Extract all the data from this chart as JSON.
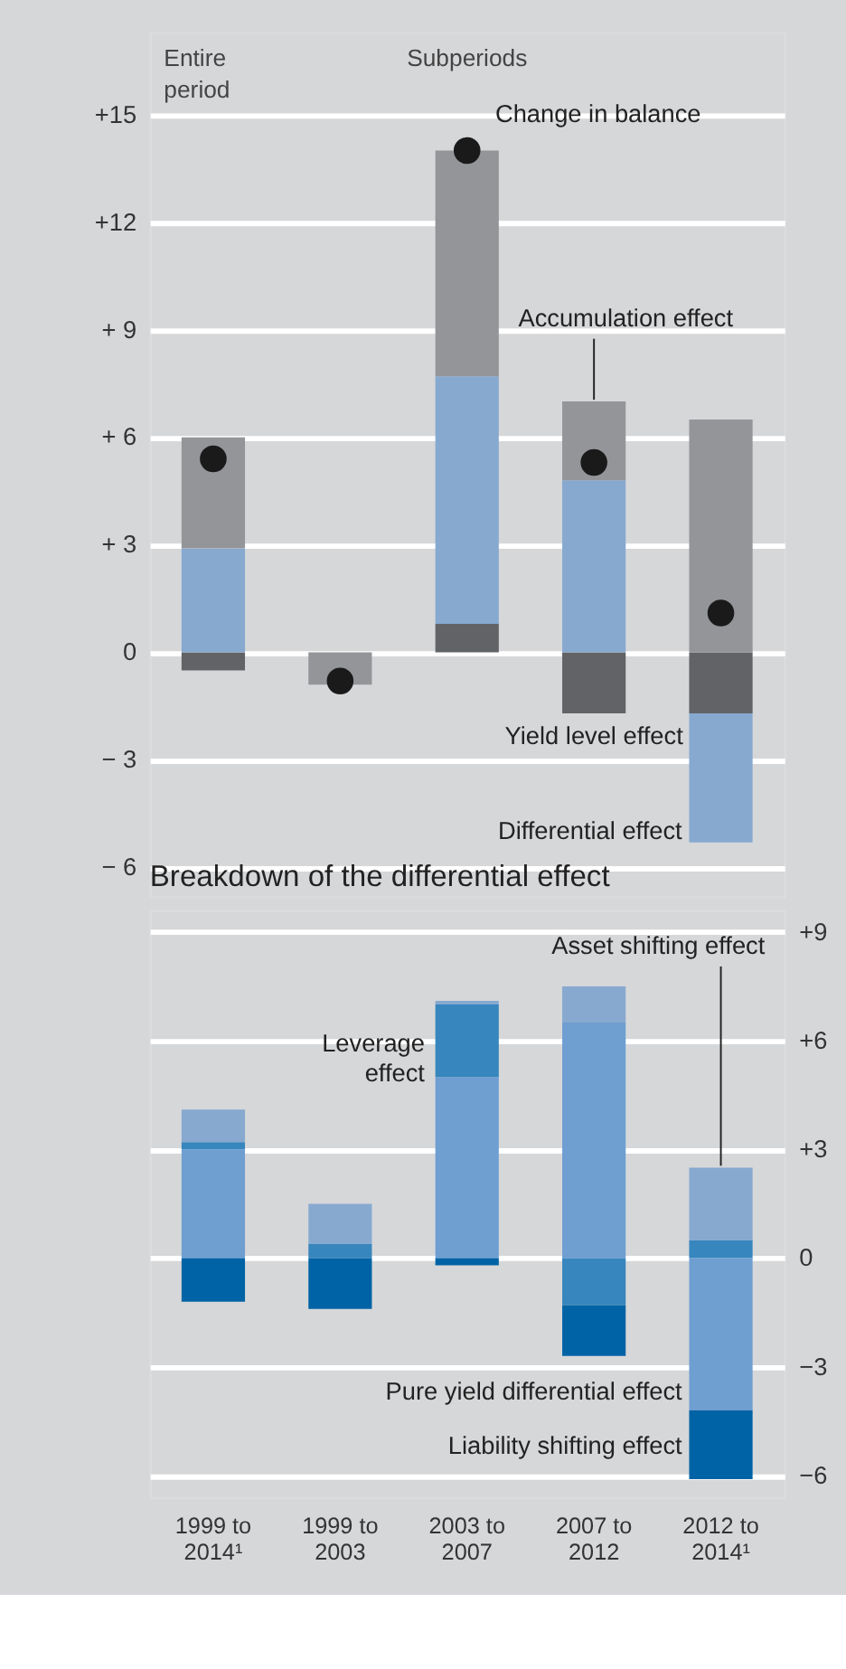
{
  "chart_data": [
    {
      "type": "bar",
      "stacked": true,
      "categories": [
        "1999 to 2014¹",
        "1999 to 2003",
        "2003 to 2007",
        "2007 to 2012",
        "2012 to 2014¹"
      ],
      "series": [
        {
          "name": "Yield level effect",
          "color": "#626366",
          "values": [
            -0.5,
            0,
            0.8,
            -1.7,
            -1.7
          ]
        },
        {
          "name": "Differential effect",
          "color": "#87a9d0",
          "values": [
            2.9,
            0,
            6.9,
            4.8,
            -3.6
          ]
        },
        {
          "name": "Accumulation effect",
          "color": "#939598",
          "values": [
            3.1,
            -0.9,
            6.3,
            2.2,
            6.5
          ]
        },
        {
          "name": "Change in balance",
          "type": "scatter",
          "color": "#1a1a1a",
          "x": [
            "1999 to 2014¹",
            "1999 to 2003",
            "2003 to 2007",
            "2007 to 2012",
            "2012 to 2014¹"
          ],
          "values": [
            5.4,
            -0.8,
            14.0,
            5.3,
            1.1
          ]
        }
      ],
      "annotations": [
        "Entire period",
        "Subperiods"
      ],
      "ylim": [
        -6.8,
        17.3
      ],
      "yticks": [
        {
          "value": 15,
          "label": "+15"
        },
        {
          "value": 12,
          "label": "+12"
        },
        {
          "value": 9,
          "label": "+ 9"
        },
        {
          "value": 6,
          "label": "+ 6"
        },
        {
          "value": 3,
          "label": "+ 3"
        },
        0,
        {
          "value": -3,
          "label": "− 3"
        },
        {
          "value": -6,
          "label": "− 6"
        }
      ],
      "grid": "y",
      "legend": false,
      "tick_labels": "y"
    },
    {
      "type": "bar",
      "stacked": true,
      "title": "Breakdown of the differential effect",
      "categories": [
        "1999 to 2014¹",
        "1999 to 2003",
        "2003 to 2007",
        "2007 to 2012",
        "2012 to 2014¹"
      ],
      "series": [
        {
          "name": "Pure yield differential effect",
          "color": "#6f9ed1",
          "values": [
            3.0,
            0,
            5.0,
            6.5,
            -4.2
          ]
        },
        {
          "name": "Leverage effect",
          "color": "#3786bd",
          "values": [
            0.2,
            0.4,
            2.0,
            -1.3,
            0.5
          ]
        },
        {
          "name": "Asset shifting effect",
          "color": "#87a9d0",
          "values": [
            0.9,
            1.1,
            0.1,
            1.0,
            2.0
          ]
        },
        {
          "name": "Liability shifting effect",
          "color": "#0063a5",
          "values": [
            -1.2,
            -1.4,
            -0.2,
            -1.4,
            -1.9
          ]
        }
      ],
      "ylim": [
        -6.6,
        9.6
      ],
      "yticks": [
        {
          "value": 9,
          "label": "+9"
        },
        {
          "value": 6,
          "label": "+6"
        },
        {
          "value": 3,
          "label": "+3"
        },
        0,
        {
          "value": -3,
          "label": "−3"
        },
        {
          "value": -6,
          "label": "−6"
        }
      ],
      "grid": "y",
      "legend": false
    }
  ]
}
